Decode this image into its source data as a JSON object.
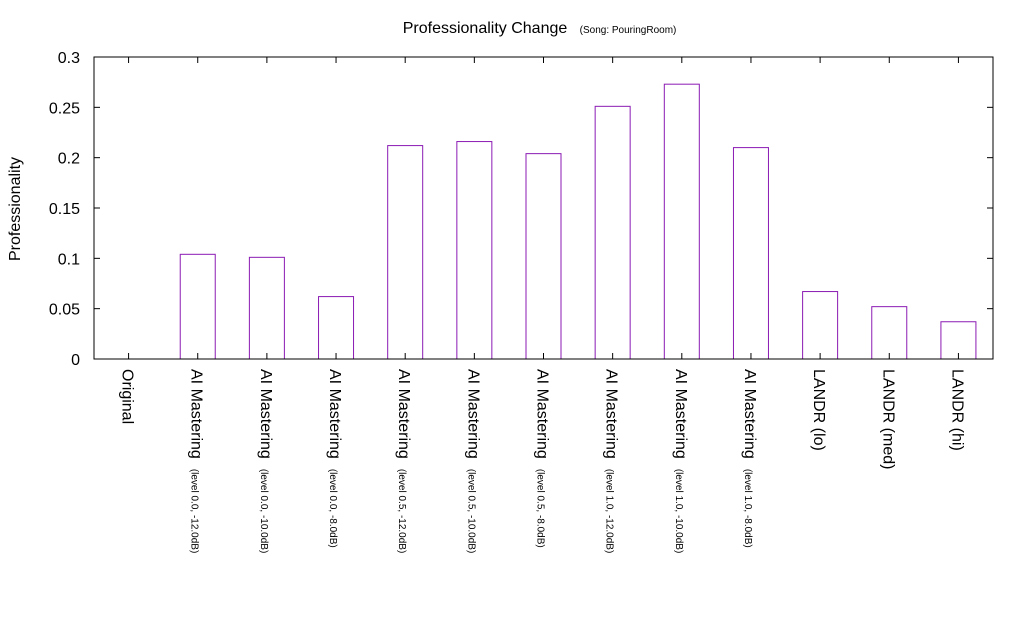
{
  "chart_data": {
    "type": "bar",
    "title": "Professionality Change",
    "subtitle": "(Song: PouringRoom)",
    "xlabel": "",
    "ylabel": "Professionality",
    "ylim": [
      0,
      0.3
    ],
    "yticks": [
      "0",
      "0.05",
      "0.1",
      "0.15",
      "0.2",
      "0.25",
      "0.3"
    ],
    "bar_color": "#8b1ab3",
    "categories": [
      {
        "main": "Original",
        "sub": ""
      },
      {
        "main": "AI Mastering",
        "sub": "(level 0.0, -12.0dB)"
      },
      {
        "main": "AI Mastering",
        "sub": "(level 0.0, -10.0dB)"
      },
      {
        "main": "AI Mastering",
        "sub": "(level 0.0, -8.0dB)"
      },
      {
        "main": "AI Mastering",
        "sub": "(level 0.5, -12.0dB)"
      },
      {
        "main": "AI Mastering",
        "sub": "(level 0.5, -10.0dB)"
      },
      {
        "main": "AI Mastering",
        "sub": "(level 0.5, -8.0dB)"
      },
      {
        "main": "AI Mastering",
        "sub": "(level 1.0, -12.0dB)"
      },
      {
        "main": "AI Mastering",
        "sub": "(level 1.0, -10.0dB)"
      },
      {
        "main": "AI Mastering",
        "sub": "(level 1.0, -8.0dB)"
      },
      {
        "main": "LANDR (lo)",
        "sub": ""
      },
      {
        "main": "LANDR (med)",
        "sub": ""
      },
      {
        "main": "LANDR (hi)",
        "sub": ""
      }
    ],
    "values": [
      0,
      0.104,
      0.101,
      0.062,
      0.212,
      0.216,
      0.204,
      0.251,
      0.273,
      0.21,
      0.067,
      0.052,
      0.037
    ]
  }
}
